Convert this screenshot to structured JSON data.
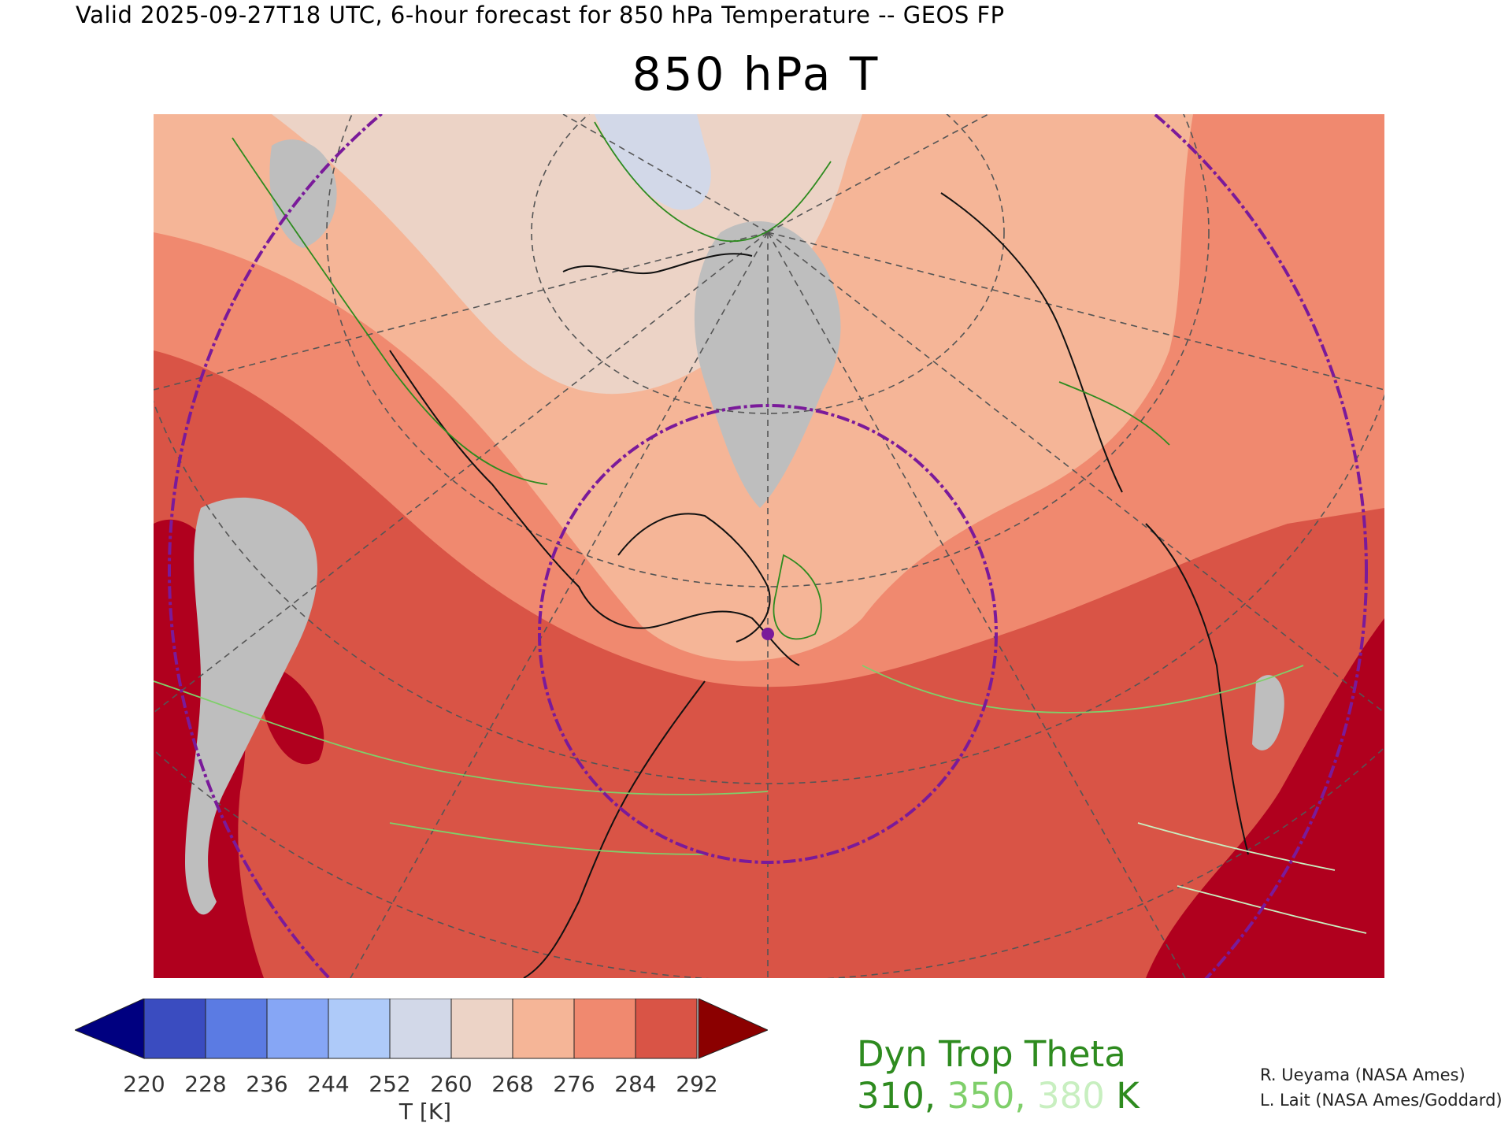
{
  "header": {
    "valid_line": "Valid 2025-09-27T18 UTC, 6-hour forecast for 850 hPa Temperature -- GEOS FP",
    "title": "850 hPa T"
  },
  "colorbar": {
    "ticks": [
      "220",
      "228",
      "236",
      "244",
      "252",
      "260",
      "268",
      "276",
      "284",
      "292"
    ],
    "label": "T [K]",
    "colors": [
      "#000080",
      "#3a4cc0",
      "#5b7be3",
      "#86a6f5",
      "#aecaf9",
      "#d2d8e8",
      "#ecd3c6",
      "#f5b597",
      "#f0896f",
      "#d95446",
      "#8b0000"
    ]
  },
  "legend": {
    "title": "Dyn Trop Theta",
    "values": [
      "310",
      "350",
      "380"
    ],
    "separator": ", ",
    "unit": " K",
    "colors": [
      "#2e8b1f",
      "#7fcf6a",
      "#c8efc0"
    ]
  },
  "credits": {
    "line1": "R. Ueyama (NASA Ames)",
    "line2": "L. Lait (NASA Ames/Goddard)"
  },
  "map": {
    "projection": "polar-stereographic",
    "range_rings": 2,
    "center_marker": "dot",
    "colors": {
      "below_252": "#bebebe",
      "t252_260": "#d2d8e8",
      "t260_268": "#ecd3c6",
      "t268_276": "#f5b597",
      "t276_284": "#f0896f",
      "t284_292": "#d95446",
      "above_292": "#b0001e",
      "coastline": "#111111",
      "graticule": "#555555",
      "range_ring": "#7a1a9a"
    }
  }
}
